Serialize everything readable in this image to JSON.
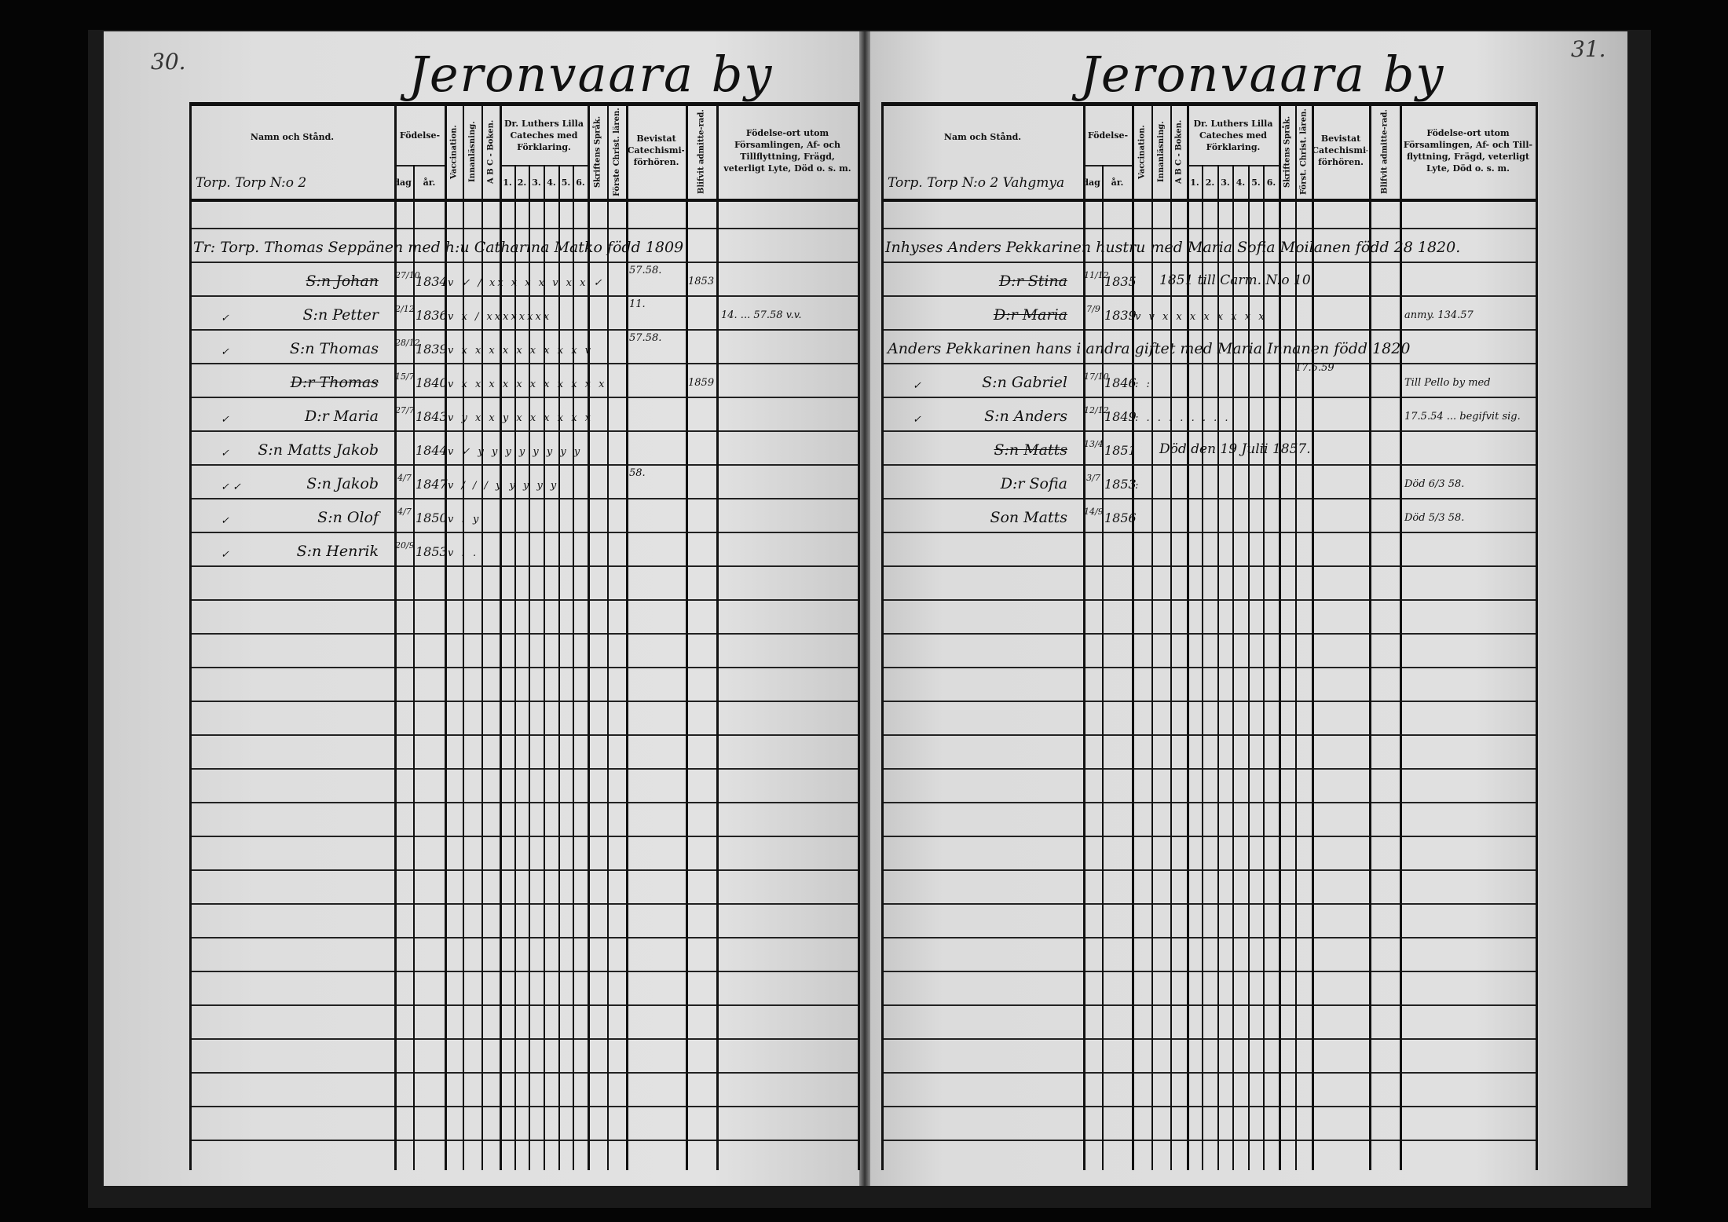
{
  "left_page": {
    "page_number": "30.",
    "title": "Jeronvaara by",
    "section_label": "Torp. Torp N:o 2",
    "headers": {
      "name": "Namn och Stånd.",
      "fodelse": "Födelse-",
      "dag": "dag.",
      "ar": "år.",
      "vaccination": "Vaccination.",
      "innanlasning": "Innanläsning.",
      "abc": "A B C - Boken.",
      "luther": "Dr. Luthers Lilla Cateches med Förklaring.",
      "luther_nums": [
        "1.",
        "2.",
        "3.",
        "4.",
        "5.",
        "6."
      ],
      "skriftens": "Skriftens Språk.",
      "forst": "Förste Christ. lären.",
      "bevistat": "Bevistat Catechismi-förhören.",
      "blifvit": "Blifvit admitte-rad.",
      "fodelseort": "Födelse-ort utom Församlingen, Af- och Tillflyttning, Frägd, veterligt Lyte, Död o. s. m."
    },
    "family_head": "Tr: Torp. Thomas Seppänen med h:u Catharina Matko född 1809",
    "rows": [
      {
        "check": "",
        "name": "S:n Johan",
        "struck": true,
        "dag": "27/10",
        "ar": "1834",
        "marks": "v ✓ / xx x x x v x x ✓",
        "bevistat": "57.58.",
        "blifvit": "1853",
        "note": ""
      },
      {
        "check": "✓",
        "name": "S:n Petter",
        "struck": false,
        "dag": "2/12",
        "ar": "1836",
        "marks": "v x / xxxxxxxx",
        "bevistat": "11.",
        "blifvit": "",
        "note": "14. ... 57.58 v.v."
      },
      {
        "check": "✓",
        "name": "S:n Thomas",
        "struck": false,
        "dag": "28/12",
        "ar": "1839",
        "marks": "v x x x x x x x x x v",
        "bevistat": "57.58.",
        "blifvit": "",
        "note": ""
      },
      {
        "check": "",
        "name": "D:r Thomas",
        "struck": true,
        "dag": "15/7",
        "ar": "1840",
        "marks": "v x x x x x x x x x x x",
        "bevistat": "",
        "blifvit": "1859",
        "note": ""
      },
      {
        "check": "✓",
        "name": "D:r Maria",
        "struck": false,
        "dag": "27/7",
        "ar": "1843",
        "marks": "v y x x y x x x x x x",
        "bevistat": "",
        "blifvit": "",
        "note": ""
      },
      {
        "check": "✓",
        "name": "S:n Matts Jakob",
        "struck": false,
        "dag": "",
        "ar": "1844",
        "marks": "v ✓ y y y y y y y y",
        "bevistat": "",
        "blifvit": "",
        "note": ""
      },
      {
        "check": "✓ ✓",
        "name": "S:n Jakob",
        "struck": false,
        "dag": "4/7",
        "ar": "1847",
        "marks": "v / / / y y y y y",
        "bevistat": "58.",
        "blifvit": "",
        "note": ""
      },
      {
        "check": "✓",
        "name": "S:n Olof",
        "struck": false,
        "dag": "4/7",
        "ar": "1850",
        "marks": "v : y",
        "bevistat": "",
        "blifvit": "",
        "note": ""
      },
      {
        "check": "✓",
        "name": "S:n Henrik",
        "struck": false,
        "dag": "20/9",
        "ar": "1853",
        "marks": "v : .",
        "bevistat": "",
        "blifvit": "",
        "note": ""
      }
    ]
  },
  "right_page": {
    "page_number": "31.",
    "title": "Jeronvaara by",
    "section_label": "Torp. Torp N:o 2 Vahgmya",
    "headers": {
      "name": "Nam och Stånd.",
      "fodelse": "Födelse-",
      "dag": "dag.",
      "ar": "år.",
      "vaccination": "Vaccination.",
      "innanlasning": "Innanläsning.",
      "abc": "A B C - Boken.",
      "luther": "Dr. Luthers Lilla Cateches med Förklaring.",
      "luther_nums": [
        "1.",
        "2.",
        "3.",
        "4.",
        "5.",
        "6."
      ],
      "skriftens": "Skriftens Språk.",
      "forst": "Först. Christ. lären.",
      "bevistat": "Bevistat Catechismi-förhören.",
      "blifvit": "Blifvit admitte-rad.",
      "fodelseort": "Födelse-ort utom Församlingen, Af- och Till-flyttning, Frägd, veterligt Lyte, Död o. s. m."
    },
    "family_head": "Inhyses Anders Pekkarinen hustru med Maria Sofia Moilanen född 28 1820.",
    "rows": [
      {
        "check": "",
        "name": "D:r Stina",
        "struck": true,
        "dag": "11/12",
        "ar": "1835",
        "marks": "",
        "mid_note": "1851 till Carm. N:o 10.",
        "note": ""
      },
      {
        "check": "",
        "name": "D:r Maria",
        "struck": true,
        "dag": "7/9",
        "ar": "1839",
        "marks": "v v x x x x x x x x",
        "mid_note": "",
        "note": "anmy. 134.57"
      },
      {
        "head": "Anders Pekkarinen hans i andra giftet med Maria Innanen född 1820",
        "sub": "17.5.59"
      },
      {
        "check": "✓",
        "name": "S:n Gabriel",
        "struck": false,
        "dag": "17/10",
        "ar": "1846",
        "marks": ": :",
        "mid_note": "",
        "note": "Till Pello by med"
      },
      {
        "check": "✓",
        "name": "S:n Anders",
        "struck": false,
        "dag": "12/12",
        "ar": "1849",
        "marks": ": . . . . . . . .",
        "mid_note": "",
        "note": "17.5.54 ... begifvit sig."
      },
      {
        "check": "",
        "name": "S:n Matts",
        "struck": true,
        "dag": "13/4",
        "ar": "1851",
        "marks": "",
        "mid_note": "Död den 19 Julii 1857.",
        "note": ""
      },
      {
        "check": "",
        "name": "D:r Sofia",
        "struck": false,
        "dag": "3/7",
        "ar": "1853",
        "marks": ":",
        "mid_note": "",
        "note": "Död 6/3 58."
      },
      {
        "check": "",
        "name": "Son Matts",
        "struck": false,
        "dag": "14/9",
        "ar": "1856",
        "marks": "",
        "mid_note": "",
        "note": "Död 5/3 58."
      }
    ]
  }
}
